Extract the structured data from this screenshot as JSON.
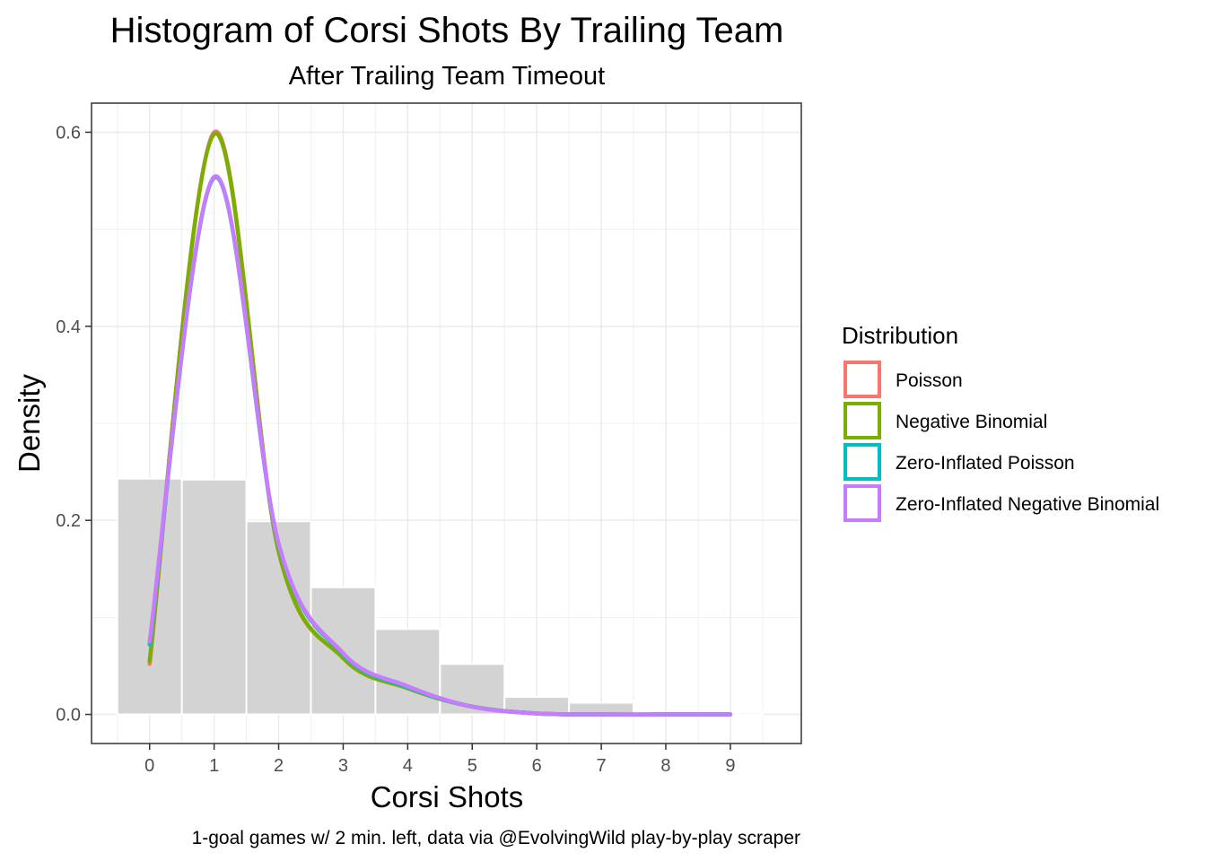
{
  "chart_data": {
    "type": "bar",
    "title": "Histogram of Corsi Shots By Trailing Team",
    "subtitle": "After Trailing Team Timeout",
    "xlabel": "Corsi Shots",
    "ylabel": "Density",
    "caption": "1-goal games w/ 2 min. left, data via @EvolvingWild play-by-play scraper",
    "xlim": [
      -0.9,
      10.1
    ],
    "ylim": [
      -0.03,
      0.63
    ],
    "x_ticks": [
      0,
      1,
      2,
      3,
      4,
      5,
      6,
      7,
      8,
      9
    ],
    "y_ticks": [
      0.0,
      0.2,
      0.4,
      0.6
    ],
    "y_tick_labels": [
      "0.0",
      "0.2",
      "0.4",
      "0.6"
    ],
    "grid": true,
    "histogram": {
      "color": "#d3d3d3",
      "bins": [
        {
          "x": 0,
          "density": 0.243
        },
        {
          "x": 1,
          "density": 0.242
        },
        {
          "x": 2,
          "density": 0.199
        },
        {
          "x": 3,
          "density": 0.131
        },
        {
          "x": 4,
          "density": 0.088
        },
        {
          "x": 5,
          "density": 0.052
        },
        {
          "x": 6,
          "density": 0.018
        },
        {
          "x": 7,
          "density": 0.012
        },
        {
          "x": 8,
          "density": 0.001
        },
        {
          "x": 9,
          "density": 0.002
        }
      ]
    },
    "legend": {
      "title": "Distribution",
      "placement": "right"
    },
    "series": [
      {
        "name": "Poisson",
        "color": "#F8766D",
        "x": [
          0,
          1,
          2,
          3,
          4,
          5,
          6,
          7,
          8,
          9
        ],
        "y": [
          0.052,
          0.6,
          0.168,
          0.058,
          0.027,
          0.008,
          0.001,
          0.0,
          0.0,
          0.0
        ]
      },
      {
        "name": "Negative Binomial",
        "color": "#7CAE00",
        "x": [
          0,
          1,
          2,
          3,
          4,
          5,
          6,
          7,
          8,
          9
        ],
        "y": [
          0.055,
          0.598,
          0.168,
          0.058,
          0.027,
          0.008,
          0.001,
          0.0,
          0.0,
          0.0
        ]
      },
      {
        "name": "Zero-Inflated Poisson",
        "color": "#00BFC4",
        "x": [
          0,
          1,
          2,
          3,
          4,
          5,
          6,
          7,
          8,
          9
        ],
        "y": [
          0.072,
          0.553,
          0.175,
          0.062,
          0.028,
          0.008,
          0.001,
          0.0,
          0.0,
          0.0
        ]
      },
      {
        "name": "Zero-Inflated Negative Binomial",
        "color": "#C77CFF",
        "x": [
          0,
          1,
          2,
          3,
          4,
          5,
          6,
          7,
          8,
          9
        ],
        "y": [
          0.075,
          0.554,
          0.176,
          0.063,
          0.029,
          0.008,
          0.001,
          0.0,
          0.0,
          0.0
        ]
      }
    ]
  }
}
